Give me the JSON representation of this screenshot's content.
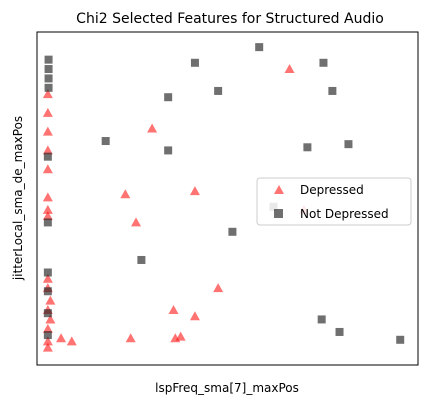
{
  "chart_data": {
    "type": "scatter",
    "title": "Chi2 Selected Features for Structured Audio",
    "xlabel": "lspFreq_sma[7]_maxPos",
    "ylabel": "jitterLocal_sma_de_maxPos",
    "xticks": "hidden",
    "yticks": "hidden",
    "xlim": [
      0,
      1
    ],
    "ylim": [
      0,
      1
    ],
    "grid": false,
    "legend": {
      "placement": "center-right"
    },
    "series": [
      {
        "name": "Depressed",
        "marker": "triangle",
        "color": "#ff0000",
        "alpha": 0.55,
        "points": [
          [
            0.685,
            0.92
          ],
          [
            0.3,
            0.73
          ],
          [
            0.225,
            0.52
          ],
          [
            0.42,
            0.53
          ],
          [
            0.725,
            0.47
          ],
          [
            0.255,
            0.43
          ],
          [
            0.485,
            0.22
          ],
          [
            0.36,
            0.15
          ],
          [
            0.42,
            0.13
          ],
          [
            0.045,
            0.06
          ],
          [
            0.075,
            0.05
          ],
          [
            0.24,
            0.06
          ],
          [
            0.365,
            0.06
          ],
          [
            0.38,
            0.065
          ],
          [
            0.008,
            0.84
          ],
          [
            0.008,
            0.78
          ],
          [
            0.008,
            0.72
          ],
          [
            0.008,
            0.66
          ],
          [
            0.008,
            0.6
          ],
          [
            0.008,
            0.51
          ],
          [
            0.008,
            0.47
          ],
          [
            0.008,
            0.45
          ],
          [
            0.008,
            0.25
          ],
          [
            0.008,
            0.22
          ],
          [
            0.008,
            0.15
          ],
          [
            0.008,
            0.09
          ],
          [
            0.008,
            0.05
          ],
          [
            0.008,
            0.03
          ],
          [
            0.015,
            0.18
          ],
          [
            0.015,
            0.12
          ]
        ]
      },
      {
        "name": "Not Depressed",
        "marker": "square",
        "color": "#222222",
        "alpha": 0.65,
        "points": [
          [
            0.6,
            0.99
          ],
          [
            0.42,
            0.94
          ],
          [
            0.78,
            0.94
          ],
          [
            0.485,
            0.85
          ],
          [
            0.805,
            0.85
          ],
          [
            0.345,
            0.83
          ],
          [
            0.17,
            0.69
          ],
          [
            0.345,
            0.66
          ],
          [
            0.735,
            0.67
          ],
          [
            0.85,
            0.68
          ],
          [
            0.64,
            0.48
          ],
          [
            0.525,
            0.4
          ],
          [
            0.27,
            0.31
          ],
          [
            0.775,
            0.12
          ],
          [
            0.825,
            0.08
          ],
          [
            0.995,
            0.055
          ],
          [
            0.01,
            0.95
          ],
          [
            0.01,
            0.92
          ],
          [
            0.01,
            0.89
          ],
          [
            0.01,
            0.86
          ],
          [
            0.008,
            0.64
          ],
          [
            0.008,
            0.43
          ],
          [
            0.008,
            0.27
          ],
          [
            0.008,
            0.21
          ],
          [
            0.008,
            0.14
          ],
          [
            0.008,
            0.07
          ]
        ]
      }
    ]
  }
}
